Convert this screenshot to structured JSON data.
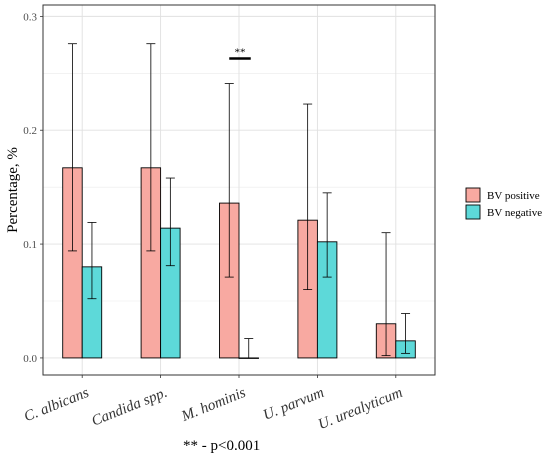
{
  "chart_data": {
    "type": "bar",
    "categories": [
      "C. albicans",
      "Candida spp.",
      "M. hominis",
      "U. parvum",
      "U. urealyticum"
    ],
    "ylabel": "Percentage, %",
    "ylim": [
      -0.015,
      0.31
    ],
    "yticks": [
      0.0,
      0.1,
      0.2,
      0.3
    ],
    "ytick_labels": [
      "0.0",
      "0.1",
      "0.2",
      "0.3"
    ],
    "grid": true,
    "legend_position": "right",
    "series": [
      {
        "name": "BV positive",
        "color": "#F8A9A1",
        "values": [
          0.167,
          0.167,
          0.136,
          0.121,
          0.03
        ],
        "err_low": [
          0.094,
          0.094,
          0.071,
          0.06,
          0.002
        ],
        "err_high": [
          0.276,
          0.276,
          0.241,
          0.223,
          0.11
        ]
      },
      {
        "name": "BV negative",
        "color": "#5DD9D9",
        "values": [
          0.08,
          0.114,
          0.0,
          0.102,
          0.015
        ],
        "err_low": [
          0.052,
          0.081,
          0.0,
          0.071,
          0.004
        ],
        "err_high": [
          0.119,
          0.158,
          0.017,
          0.145,
          0.039
        ]
      }
    ],
    "annotations": [
      {
        "category": "M. hominis",
        "text": "**",
        "y": 0.263
      }
    ]
  },
  "footnote": "** - p<0.001"
}
